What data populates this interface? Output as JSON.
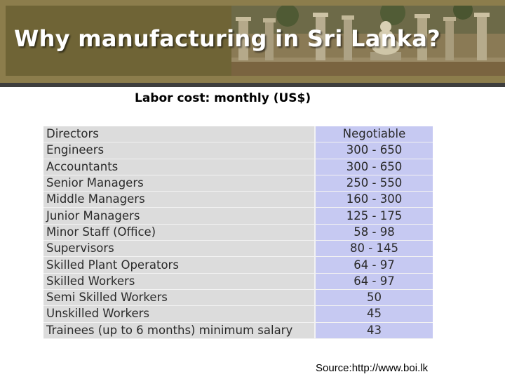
{
  "slide": {
    "title": "Why manufacturing in Sri Lanka?",
    "subtitle": "Labor cost: monthly (US$)",
    "source": "Source:http://www.boi.lk"
  },
  "table": {
    "rows": [
      {
        "role": "Directors",
        "range": "Negotiable"
      },
      {
        "role": "Engineers",
        "range": "300 - 650"
      },
      {
        "role": "Accountants",
        "range": "300 - 650"
      },
      {
        "role": "Senior Managers",
        "range": "250 - 550"
      },
      {
        "role": "Middle Managers",
        "range": "160 - 300"
      },
      {
        "role": "Junior Managers",
        "range": "125 - 175"
      },
      {
        "role": "Minor Staff (Office)",
        "range": "58 - 98"
      },
      {
        "role": "Supervisors",
        "range": "80 - 145"
      },
      {
        "role": "Skilled Plant Operators",
        "range": "64 - 97"
      },
      {
        "role": "Skilled Workers",
        "range": "64 - 97"
      },
      {
        "role": "Semi Skilled Workers",
        "range": "50"
      },
      {
        "role": "Unskilled Workers",
        "range": "45"
      },
      {
        "role": "Trainees (up to 6 months) minimum salary",
        "range": "43"
      }
    ]
  },
  "colors": {
    "banner": "#6f6436",
    "range_column": "#c6c9f2",
    "role_column": "#dcdcdc"
  }
}
